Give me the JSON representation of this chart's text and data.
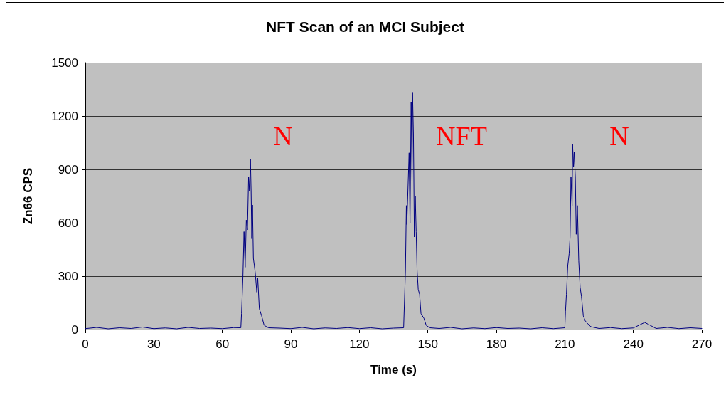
{
  "chart_data": {
    "type": "line",
    "title": "NFT Scan of an MCI Subject",
    "xlabel": "Time (s)",
    "ylabel": "Zn66 CPS",
    "series": [
      {
        "color": "#000080",
        "x": [
          0,
          5,
          10,
          15,
          20,
          25,
          30,
          35,
          40,
          45,
          50,
          55,
          60,
          65,
          68.1,
          68.4,
          69.0,
          69.5,
          70.0,
          70.5,
          71.0,
          71.5,
          71.9,
          72.3,
          72.6,
          72.9,
          73.2,
          73.6,
          74.4,
          75.1,
          75.5,
          76.2,
          77.2,
          78.3,
          80.2,
          85,
          90,
          95,
          100,
          105,
          110,
          115,
          120,
          125,
          130,
          135,
          139.4,
          140.2,
          140.6,
          140.8,
          141.2,
          141.8,
          142.2,
          142.7,
          143.1,
          143.3,
          143.7,
          144.1,
          144.5,
          144.9,
          145.3,
          145.8,
          146.4,
          147.0,
          148.3,
          149.3,
          150.9,
          155,
          160,
          165,
          170,
          175,
          180,
          185,
          190,
          195,
          200,
          205,
          210.0,
          210.3,
          210.7,
          211.3,
          211.9,
          212.3,
          212.7,
          213.2,
          213.4,
          213.8,
          214.1,
          214.6,
          215.0,
          215.5,
          216.1,
          216.7,
          217.3,
          218.1,
          218.9,
          219.8,
          221.4,
          225,
          230,
          235,
          240,
          245,
          250,
          255,
          260,
          265,
          270
        ],
        "values": [
          5,
          12,
          4,
          10,
          6,
          14,
          5,
          9,
          4,
          12,
          6,
          8,
          5,
          11,
          10,
          90,
          290,
          550,
          350,
          615,
          560,
          860,
          780,
          960,
          780,
          510,
          700,
          400,
          320,
          210,
          290,
          117,
          77,
          24,
          10,
          8,
          5,
          12,
          4,
          9,
          6,
          11,
          5,
          10,
          4,
          8,
          10,
          333,
          697,
          590,
          750,
          993,
          600,
          1277,
          830,
          1334,
          1100,
          520,
          750,
          550,
          333,
          225,
          198,
          90,
          63,
          23,
          10,
          6,
          12,
          4,
          9,
          5,
          11,
          6,
          8,
          4,
          10,
          5,
          10,
          103,
          198,
          360,
          427,
          522,
          858,
          697,
          1044,
          913,
          1000,
          858,
          535,
          697,
          387,
          238,
          185,
          77,
          50,
          36,
          16,
          6,
          11,
          5,
          9,
          40,
          6,
          12,
          5,
          10,
          6
        ]
      }
    ],
    "xlim": [
      0,
      270
    ],
    "xticks": [
      0,
      30,
      60,
      90,
      120,
      150,
      180,
      210,
      240,
      270
    ],
    "ylim": [
      0,
      1500
    ],
    "yticks": [
      0,
      300,
      600,
      900,
      1200,
      1500
    ],
    "grid": "y",
    "marker": "none",
    "line_style": "solid",
    "annotations": [
      "N",
      "NFT",
      "N"
    ]
  }
}
